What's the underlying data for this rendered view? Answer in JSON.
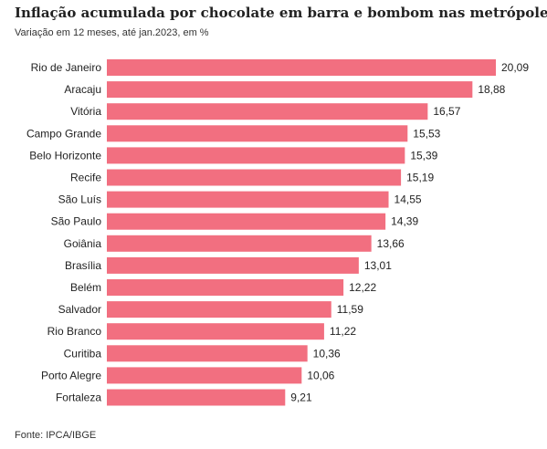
{
  "chart_data": {
    "type": "bar",
    "orientation": "horizontal",
    "title": "Inflação acumulada por chocolate em barra e bombom nas metrópoles",
    "subtitle": "Variação em 12 meses, até jan.2023, em %",
    "source": "Fonte: IPCA/IBGE",
    "bar_color": "#f26f80",
    "xlim": [
      0,
      20.09
    ],
    "grid": false,
    "categories": [
      "Rio de Janeiro",
      "Aracaju",
      "Vitória",
      "Campo Grande",
      "Belo Horizonte",
      "Recife",
      "São Luís",
      "São Paulo",
      "Goiânia",
      "Brasília",
      "Belém",
      "Salvador",
      "Rio Branco",
      "Curitiba",
      "Porto Alegre",
      "Fortaleza"
    ],
    "values": [
      20.09,
      18.88,
      16.57,
      15.53,
      15.39,
      15.19,
      14.55,
      14.39,
      13.66,
      13.01,
      12.22,
      11.59,
      11.22,
      10.36,
      10.06,
      9.21
    ],
    "value_labels": [
      "20,09",
      "18,88",
      "16,57",
      "15,53",
      "15,39",
      "15,19",
      "14,55",
      "14,39",
      "13,66",
      "13,01",
      "12,22",
      "11,59",
      "11,22",
      "10,36",
      "10,06",
      "9,21"
    ]
  }
}
